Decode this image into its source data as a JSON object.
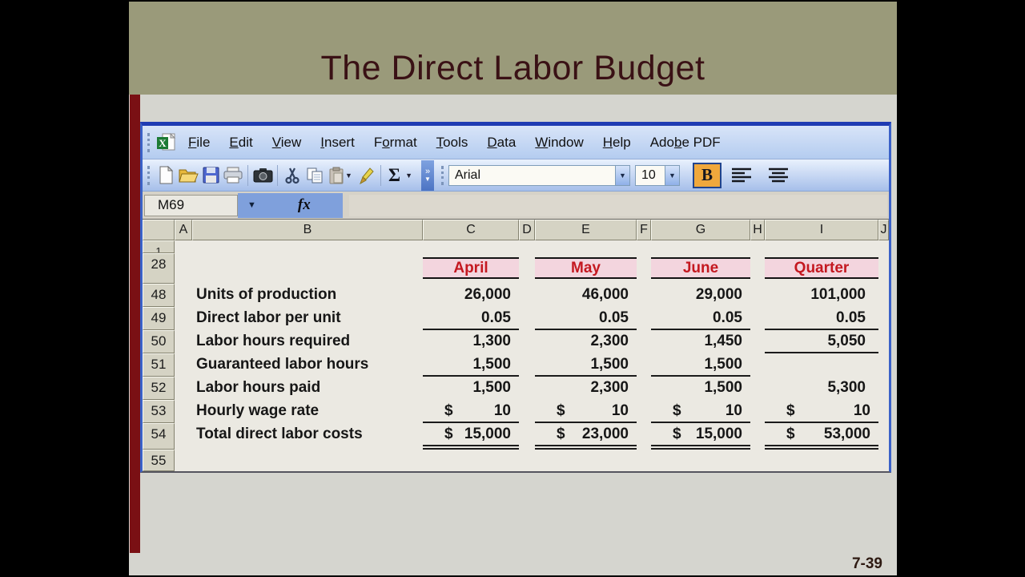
{
  "slide": {
    "title": "The Direct Labor Budget",
    "page_number": "7-39"
  },
  "excel": {
    "menubar": {
      "items": [
        {
          "label": "File",
          "underline": 0
        },
        {
          "label": "Edit",
          "underline": 0
        },
        {
          "label": "View",
          "underline": 0
        },
        {
          "label": "Insert",
          "underline": 0
        },
        {
          "label": "Format",
          "underline": 1
        },
        {
          "label": "Tools",
          "underline": 0
        },
        {
          "label": "Data",
          "underline": 0
        },
        {
          "label": "Window",
          "underline": 0
        },
        {
          "label": "Help",
          "underline": 0
        },
        {
          "label": "Adobe PDF",
          "underline": 3
        }
      ]
    },
    "toolbar": {
      "autosum_label": "Σ",
      "overflow_label": "»",
      "font_name": "Arial",
      "font_size": "10",
      "bold_label": "B"
    },
    "formula_bar": {
      "name_box": "M69",
      "fx_label": "fx"
    },
    "sheet": {
      "columns": [
        "A",
        "B",
        "C",
        "D",
        "E",
        "F",
        "G",
        "H",
        "I",
        "J"
      ],
      "first_partial_row": "1",
      "period_header_row": "28",
      "period_headers": [
        "April",
        "May",
        "June",
        "Quarter"
      ],
      "rows": [
        {
          "row": "48",
          "label": "Units of production",
          "currency": false,
          "values": [
            "26,000",
            "46,000",
            "29,000",
            "101,000"
          ],
          "underline": [
            false,
            false,
            false,
            false
          ],
          "double_underline": false
        },
        {
          "row": "49",
          "label": "Direct labor per unit",
          "currency": false,
          "values": [
            "0.05",
            "0.05",
            "0.05",
            "0.05"
          ],
          "underline": [
            true,
            true,
            true,
            true
          ],
          "double_underline": false
        },
        {
          "row": "50",
          "label": "Labor hours required",
          "currency": false,
          "values": [
            "1,300",
            "2,300",
            "1,450",
            "5,050"
          ],
          "underline": [
            false,
            false,
            false,
            true
          ],
          "double_underline": false
        },
        {
          "row": "51",
          "label": "Guaranteed labor hours",
          "currency": false,
          "values": [
            "1,500",
            "1,500",
            "1,500",
            ""
          ],
          "underline": [
            true,
            true,
            true,
            false
          ],
          "double_underline": false
        },
        {
          "row": "52",
          "label": "Labor hours paid",
          "currency": false,
          "values": [
            "1,500",
            "2,300",
            "1,500",
            "5,300"
          ],
          "underline": [
            false,
            false,
            false,
            false
          ],
          "double_underline": false
        },
        {
          "row": "53",
          "label": "Hourly wage rate",
          "currency": true,
          "values": [
            "10",
            "10",
            "10",
            "10"
          ],
          "underline": [
            true,
            true,
            true,
            true
          ],
          "double_underline": false
        },
        {
          "row": "54",
          "label": "Total direct labor costs",
          "currency": true,
          "values": [
            "15,000",
            "23,000",
            "15,000",
            "53,000"
          ],
          "underline": [
            true,
            true,
            true,
            true
          ],
          "double_underline": true
        }
      ],
      "last_row": "55"
    }
  },
  "colors": {
    "title_text": "#3a1115",
    "band_olive": "#9a9a7a",
    "stripe_red": "#7a1014",
    "slide_gray": "#d5d5cf",
    "period_header_bg": "#f3d5de",
    "period_header_text": "#c41820",
    "bold_button_bg": "#f0a83c"
  }
}
